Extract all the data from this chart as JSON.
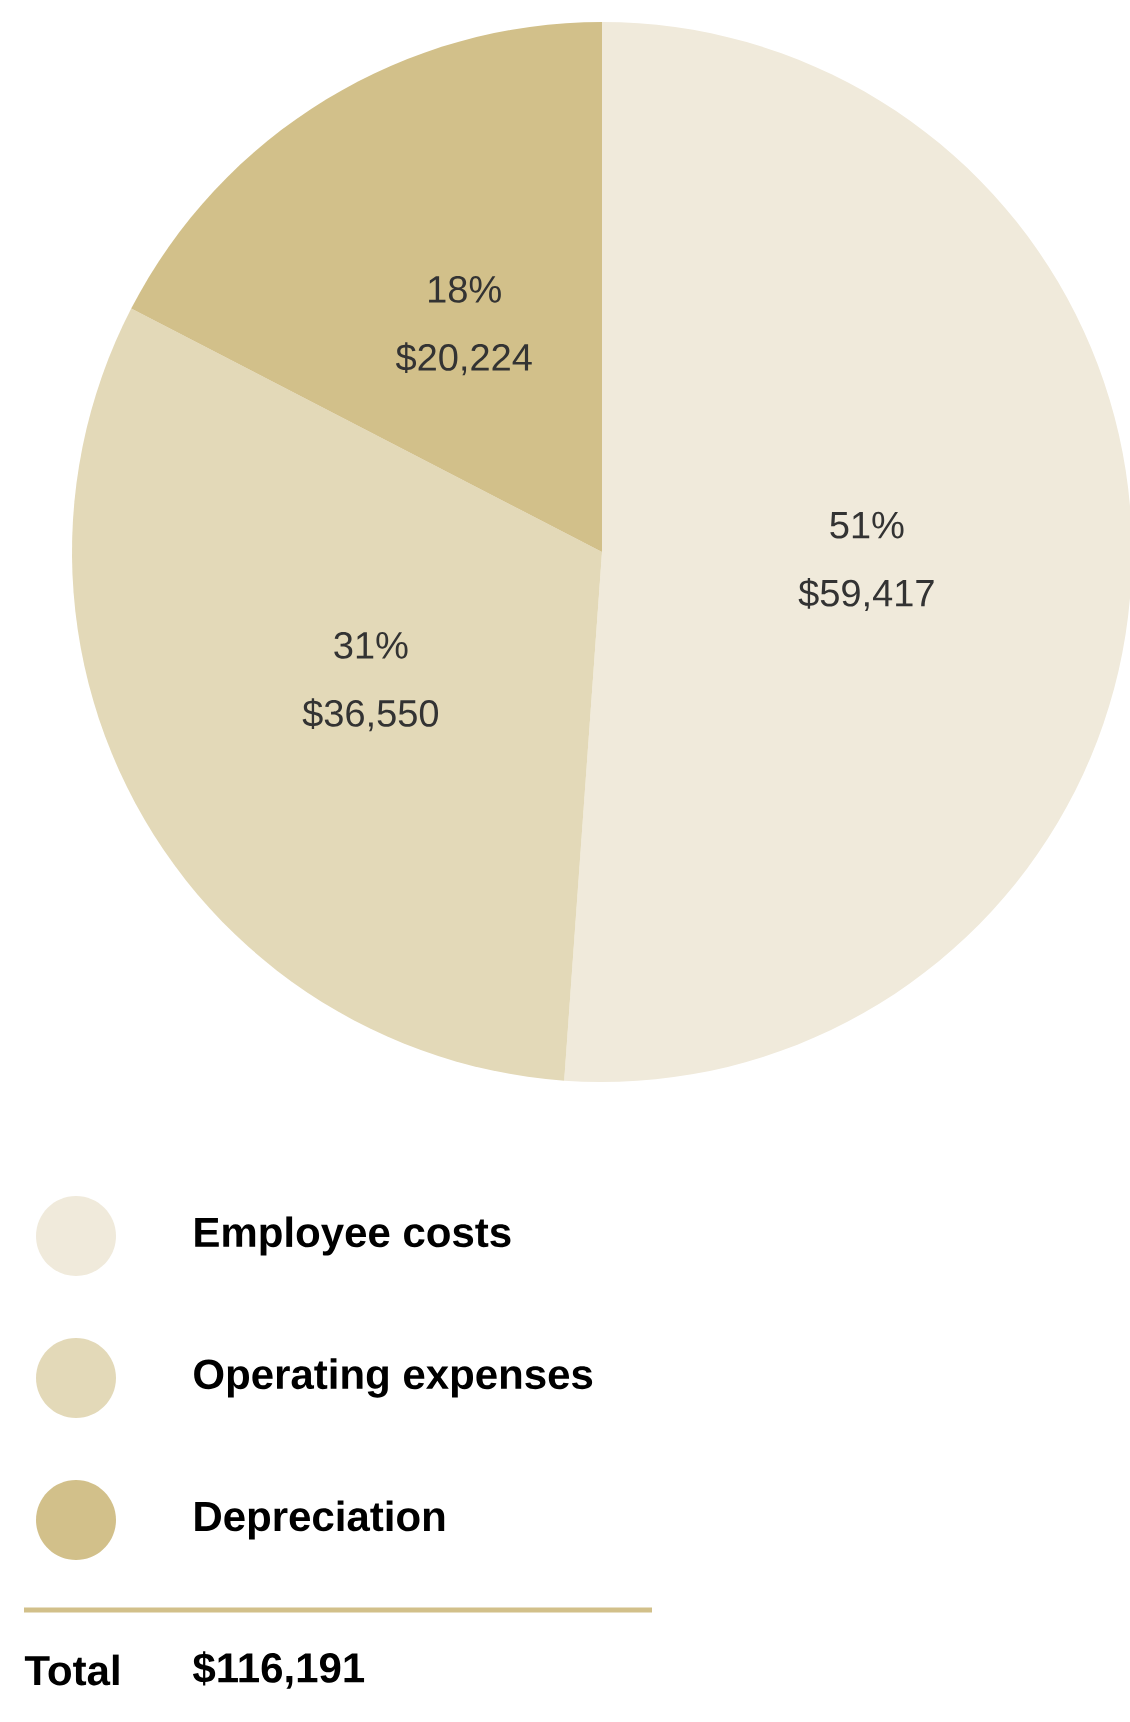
{
  "chart_data": {
    "type": "pie",
    "categories": [
      "Employee costs",
      "Operating expenses",
      "Depreciation"
    ],
    "values": [
      59417,
      36550,
      20224
    ],
    "colors": [
      "#f0eadb",
      "#e3d9b8",
      "#d2c08a"
    ],
    "value_labels": [
      "51% $59,417",
      "31% $36,550",
      "18% $20,224"
    ],
    "legend": "bottom",
    "annotations": [
      "Total",
      "$116,191"
    ]
  }
}
